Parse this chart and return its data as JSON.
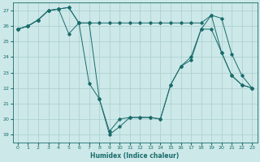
{
  "xlabel": "Humidex (Indice chaleur)",
  "background_color": "#cce8e8",
  "grid_color": "#aacece",
  "line_color": "#1a6b6b",
  "xlim": [
    -0.5,
    23.5
  ],
  "ylim": [
    18.5,
    27.5
  ],
  "yticks": [
    19,
    20,
    21,
    22,
    23,
    24,
    25,
    26,
    27
  ],
  "xticks": [
    0,
    1,
    2,
    3,
    4,
    5,
    6,
    7,
    8,
    9,
    10,
    11,
    12,
    13,
    14,
    15,
    16,
    17,
    18,
    19,
    20,
    21,
    22,
    23
  ],
  "series": [
    [
      25.8,
      26.0,
      26.4,
      27.0,
      27.1,
      27.2,
      26.2,
      26.2,
      26.2,
      26.2,
      26.2,
      26.2,
      26.2,
      26.2,
      26.2,
      26.2,
      26.2,
      26.2,
      26.2,
      26.7,
      26.5,
      24.2,
      22.8,
      22.0
    ],
    [
      25.8,
      26.0,
      26.4,
      27.0,
      27.1,
      27.2,
      26.2,
      22.3,
      21.3,
      19.2,
      20.0,
      20.1,
      20.1,
      20.1,
      20.0,
      22.2,
      23.4,
      23.8,
      25.8,
      26.7,
      24.3,
      22.8,
      22.2,
      22.0
    ],
    [
      25.8,
      26.0,
      26.4,
      27.0,
      27.1,
      25.5,
      26.2,
      26.2,
      21.3,
      19.0,
      19.5,
      20.1,
      20.1,
      20.1,
      20.0,
      22.2,
      23.4,
      24.0,
      25.8,
      25.8,
      24.3,
      22.8,
      22.2,
      22.0
    ]
  ]
}
